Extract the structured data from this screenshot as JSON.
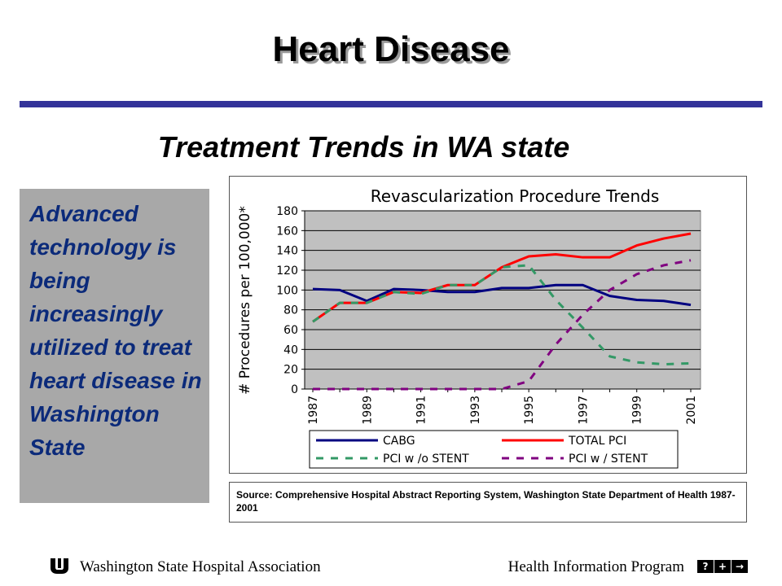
{
  "slide": {
    "title": "Heart Disease",
    "subtitle": "Treatment Trends in WA state",
    "body_text": "Advanced technology is being increasingly utilized to treat heart disease in Washington State",
    "source": "Source: Comprehensive Hospital Abstract Reporting System, Washington State Department of Health 1987-2001",
    "rule_color": "#333399"
  },
  "footer": {
    "left": "Washington State Hospital Association",
    "right": "Health Information Program",
    "logo_icon": "wsha-logo-icon",
    "nav": {
      "help": "?",
      "plus": "+",
      "next": "→",
      "help_icon": "help-icon",
      "plus_icon": "plus-icon",
      "next_icon": "arrow-right-icon"
    }
  },
  "chart_data": {
    "type": "line",
    "title": "Revascularization Procedure Trends",
    "ylabel": "# Procedures per 100,000*",
    "xlabel": "",
    "ylim": [
      0,
      180
    ],
    "yticks": [
      0,
      20,
      40,
      60,
      80,
      100,
      120,
      140,
      160,
      180
    ],
    "x": [
      1987,
      1988,
      1989,
      1990,
      1991,
      1992,
      1993,
      1994,
      1995,
      1996,
      1997,
      1998,
      1999,
      2000,
      2001
    ],
    "xtick_labels": [
      "1987",
      "1989",
      "1991",
      "1993",
      "1995",
      "1997",
      "1999",
      "2001"
    ],
    "grid": "horizontal",
    "plot_background": "#c0c0c0",
    "legend_position": "bottom",
    "series": [
      {
        "name": "CABG",
        "color": "#000080",
        "style": "solid",
        "values": [
          101,
          100,
          89,
          101,
          100,
          98,
          98,
          102,
          102,
          105,
          105,
          94,
          90,
          89,
          85
        ]
      },
      {
        "name": "TOTAL PCI",
        "color": "#ff0000",
        "style": "solid",
        "values": [
          68,
          87,
          87,
          98,
          97,
          105,
          105,
          123,
          134,
          136,
          133,
          133,
          145,
          152,
          157
        ]
      },
      {
        "name": "PCI w /o STENT",
        "color": "#339966",
        "style": "dashed",
        "values": [
          68,
          87,
          87,
          98,
          96,
          105,
          105,
          123,
          125,
          90,
          62,
          33,
          27,
          25,
          26
        ]
      },
      {
        "name": "PCI w / STENT",
        "color": "#800080",
        "style": "dashed",
        "values": [
          0,
          0,
          0,
          0,
          0,
          0,
          0,
          0,
          8,
          45,
          75,
          100,
          116,
          125,
          130
        ]
      }
    ]
  }
}
